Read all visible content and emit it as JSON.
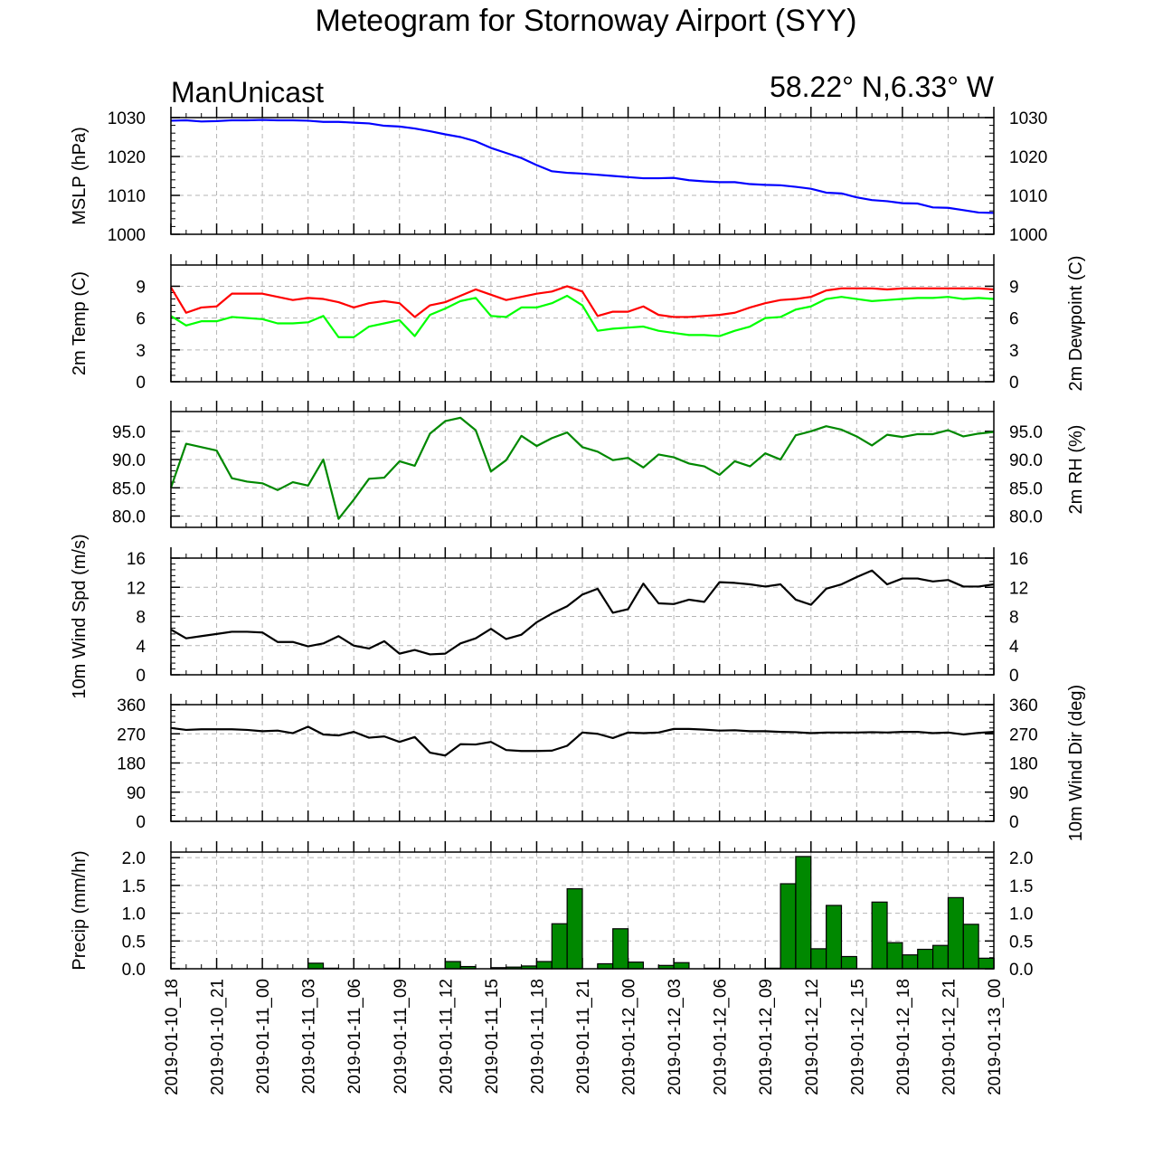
{
  "title": "Meteogram for Stornoway Airport (SYY)",
  "model_label": "ManUnicast",
  "location_label": "58.22° N,6.33° W",
  "time_labels": [
    "2019-01-10_18",
    "2019-01-10_21",
    "2019-01-11_00",
    "2019-01-11_03",
    "2019-01-11_06",
    "2019-01-11_09",
    "2019-01-11_12",
    "2019-01-11_15",
    "2019-01-11_18",
    "2019-01-11_21",
    "2019-01-12_00",
    "2019-01-12_03",
    "2019-01-12_06",
    "2019-01-12_09",
    "2019-01-12_12",
    "2019-01-12_15",
    "2019-01-12_18",
    "2019-01-12_21",
    "2019-01-13_00"
  ],
  "colors": {
    "mslp": "#0000ff",
    "temperature": "#ff0000",
    "dewpoint": "#00ff00",
    "rh": "#008800",
    "wind": "#000000",
    "precip_fill": "#008800",
    "grid": "#b4b4b4"
  },
  "chart_data": [
    {
      "type": "line",
      "ylabel": "MSLP (hPa)",
      "ylabel_right": "",
      "ylim": [
        1000,
        1030
      ],
      "yticks": [
        "1000",
        "1010",
        "1020",
        "1030"
      ],
      "x": [
        0,
        1,
        2,
        3,
        4,
        5,
        6,
        7,
        8,
        9,
        10,
        11,
        12,
        13,
        14,
        15,
        16,
        17,
        18,
        19,
        20,
        21,
        22,
        23,
        24,
        25,
        26,
        27,
        28,
        29,
        30,
        31,
        32,
        33,
        34,
        35,
        36,
        37,
        38,
        39,
        40,
        41,
        42,
        43,
        44,
        45,
        46,
        47,
        48,
        49,
        50,
        51,
        52,
        53,
        54
      ],
      "series": [
        {
          "values": [
            1029.2,
            1029.3,
            1029.0,
            1029.1,
            1029.3,
            1029.3,
            1029.4,
            1029.3,
            1029.3,
            1029.2,
            1028.9,
            1028.9,
            1028.7,
            1028.5,
            1027.9,
            1027.7,
            1027.2,
            1026.5,
            1025.7,
            1025.0,
            1023.9,
            1022.2,
            1020.9,
            1019.6,
            1017.8,
            1016.2,
            1015.8,
            1015.6,
            1015.3,
            1015.0,
            1014.7,
            1014.4,
            1014.4,
            1014.5,
            1013.9,
            1013.6,
            1013.4,
            1013.4,
            1012.9,
            1012.7,
            1012.6,
            1012.2,
            1011.7,
            1010.7,
            1010.5,
            1009.5,
            1008.8,
            1008.5,
            1008.0,
            1007.9,
            1006.9,
            1006.8,
            1006.2,
            1005.6,
            1005.5
          ]
        }
      ]
    },
    {
      "type": "line",
      "ylabel": "2m Temp (C)",
      "ylabel_right": "2m Dewpoint (C)",
      "ylim": [
        0,
        11
      ],
      "yticks": [
        "0",
        "3",
        "6",
        "9"
      ],
      "x": [
        0,
        1,
        2,
        3,
        4,
        5,
        6,
        7,
        8,
        9,
        10,
        11,
        12,
        13,
        14,
        15,
        16,
        17,
        18,
        19,
        20,
        21,
        22,
        23,
        24,
        25,
        26,
        27,
        28,
        29,
        30,
        31,
        32,
        33,
        34,
        35,
        36,
        37,
        38,
        39,
        40,
        41,
        42,
        43,
        44,
        45,
        46,
        47,
        48,
        49,
        50,
        51,
        52,
        53,
        54
      ],
      "series": [
        {
          "name": "2m Temp",
          "values": [
            8.9,
            6.5,
            7.0,
            7.1,
            8.3,
            8.3,
            8.3,
            8.0,
            7.7,
            7.9,
            7.8,
            7.5,
            7.0,
            7.4,
            7.6,
            7.4,
            6.1,
            7.2,
            7.5,
            8.1,
            8.7,
            8.2,
            7.7,
            8.0,
            8.3,
            8.5,
            9.0,
            8.5,
            6.2,
            6.6,
            6.6,
            7.1,
            6.3,
            6.1,
            6.1,
            6.2,
            6.3,
            6.5,
            7.0,
            7.4,
            7.7,
            7.8,
            8.0,
            8.6,
            8.8,
            8.8,
            8.8,
            8.7,
            8.8,
            8.8,
            8.8,
            8.8,
            8.8,
            8.8,
            8.7
          ]
        },
        {
          "name": "2m Dewpoint",
          "values": [
            6.2,
            5.3,
            5.7,
            5.7,
            6.1,
            6.0,
            5.9,
            5.5,
            5.5,
            5.6,
            6.2,
            4.2,
            4.2,
            5.2,
            5.5,
            5.8,
            4.3,
            6.3,
            6.9,
            7.6,
            7.9,
            6.2,
            6.1,
            7.0,
            7.0,
            7.4,
            8.1,
            7.2,
            4.8,
            5.0,
            5.1,
            5.2,
            4.8,
            4.6,
            4.4,
            4.4,
            4.3,
            4.8,
            5.2,
            6.0,
            6.1,
            6.8,
            7.1,
            7.8,
            8.0,
            7.8,
            7.6,
            7.7,
            7.8,
            7.9,
            7.9,
            8.0,
            7.8,
            7.9,
            7.8
          ]
        }
      ]
    },
    {
      "type": "line",
      "ylabel": "",
      "ylabel_right": "2m RH (%)",
      "ylim": [
        78,
        98.5
      ],
      "yticks": [
        "80.0",
        "85.0",
        "90.0",
        "95.0"
      ],
      "x": [
        0,
        1,
        2,
        3,
        4,
        5,
        6,
        7,
        8,
        9,
        10,
        11,
        12,
        13,
        14,
        15,
        16,
        17,
        18,
        19,
        20,
        21,
        22,
        23,
        24,
        25,
        26,
        27,
        28,
        29,
        30,
        31,
        32,
        33,
        34,
        35,
        36,
        37,
        38,
        39,
        40,
        41,
        42,
        43,
        44,
        45,
        46,
        47,
        48,
        49,
        50,
        51,
        52,
        53,
        54
      ],
      "series": [
        {
          "name": "2m RH",
          "values": [
            85.0,
            92.8,
            92.2,
            91.6,
            86.7,
            86.1,
            85.8,
            84.6,
            86.0,
            85.4,
            90.0,
            79.5,
            82.9,
            86.6,
            86.8,
            89.7,
            88.9,
            94.6,
            96.8,
            97.4,
            95.2,
            87.9,
            89.9,
            94.2,
            92.4,
            93.8,
            94.8,
            92.2,
            91.4,
            89.9,
            90.3,
            88.6,
            90.9,
            90.4,
            89.3,
            88.8,
            87.3,
            89.7,
            88.8,
            91.1,
            90.0,
            94.3,
            95.0,
            95.9,
            95.3,
            94.1,
            92.5,
            94.4,
            94.0,
            94.5,
            94.5,
            95.2,
            94.1,
            94.6,
            94.9
          ]
        }
      ]
    },
    {
      "type": "line",
      "ylabel": "10m Wind Spd (m/s)",
      "ylabel_right": "",
      "ylim": [
        0,
        16
      ],
      "yticks": [
        "0",
        "4",
        "8",
        "12",
        "16"
      ],
      "x": [
        0,
        1,
        2,
        3,
        4,
        5,
        6,
        7,
        8,
        9,
        10,
        11,
        12,
        13,
        14,
        15,
        16,
        17,
        18,
        19,
        20,
        21,
        22,
        23,
        24,
        25,
        26,
        27,
        28,
        29,
        30,
        31,
        32,
        33,
        34,
        35,
        36,
        37,
        38,
        39,
        40,
        41,
        42,
        43,
        44,
        45,
        46,
        47,
        48,
        49,
        50,
        51,
        52,
        53,
        54
      ],
      "series": [
        {
          "name": "10m Wind Spd",
          "values": [
            6.2,
            5.0,
            5.3,
            5.6,
            5.9,
            5.9,
            5.8,
            4.5,
            4.5,
            3.9,
            4.3,
            5.3,
            4.0,
            3.6,
            4.6,
            2.9,
            3.4,
            2.8,
            2.9,
            4.3,
            5.0,
            6.3,
            4.9,
            5.5,
            7.2,
            8.4,
            9.4,
            11.0,
            11.8,
            8.5,
            9.0,
            12.5,
            9.8,
            9.7,
            10.3,
            10.0,
            12.7,
            12.6,
            12.4,
            12.1,
            12.4,
            10.3,
            9.6,
            11.8,
            12.4,
            13.4,
            14.3,
            12.4,
            13.2,
            13.2,
            12.8,
            13.0,
            12.1,
            12.1,
            12.4
          ]
        }
      ]
    },
    {
      "type": "line",
      "ylabel": "",
      "ylabel_right": "10m Wind Dir (deg)",
      "ylim": [
        0,
        360
      ],
      "yticks": [
        "0",
        "90",
        "180",
        "270",
        "360"
      ],
      "x": [
        0,
        1,
        2,
        3,
        4,
        5,
        6,
        7,
        8,
        9,
        10,
        11,
        12,
        13,
        14,
        15,
        16,
        17,
        18,
        19,
        20,
        21,
        22,
        23,
        24,
        25,
        26,
        27,
        28,
        29,
        30,
        31,
        32,
        33,
        34,
        35,
        36,
        37,
        38,
        39,
        40,
        41,
        42,
        43,
        44,
        45,
        46,
        47,
        48,
        49,
        50,
        51,
        52,
        53,
        54
      ],
      "series": [
        {
          "name": "10m Wind Dir",
          "values": [
            288,
            282,
            284,
            284,
            284,
            282,
            278,
            280,
            272,
            292,
            268,
            265,
            276,
            258,
            262,
            245,
            260,
            212,
            203,
            238,
            237,
            245,
            220,
            217,
            217,
            218,
            233,
            274,
            270,
            257,
            274,
            272,
            274,
            285,
            285,
            283,
            280,
            281,
            278,
            278,
            276,
            275,
            272,
            274,
            274,
            274,
            275,
            274,
            276,
            276,
            272,
            274,
            268,
            273,
            276
          ]
        }
      ]
    },
    {
      "type": "bar",
      "ylabel": "Precip (mm/hr)",
      "ylabel_right": "",
      "ylim": [
        0,
        2.1
      ],
      "yticks": [
        "0.0",
        "0.5",
        "1.0",
        "1.5",
        "2.0"
      ],
      "x": [
        0,
        1,
        2,
        3,
        4,
        5,
        6,
        7,
        8,
        9,
        10,
        11,
        12,
        13,
        14,
        15,
        16,
        17,
        18,
        19,
        20,
        21,
        22,
        23,
        24,
        25,
        26,
        27,
        28,
        29,
        30,
        31,
        32,
        33,
        34,
        35,
        36,
        37,
        38,
        39,
        40,
        41,
        42,
        43,
        44,
        45,
        46,
        47,
        48,
        49,
        50,
        51,
        52,
        53
      ],
      "series": [
        {
          "name": "Precip",
          "values": [
            0,
            0,
            0,
            0,
            0,
            0,
            0,
            0,
            0,
            0.1,
            0.01,
            0,
            0,
            0,
            0.01,
            0,
            0,
            0,
            0.13,
            0.04,
            0,
            0.02,
            0.03,
            0.05,
            0.13,
            0.81,
            1.44,
            0,
            0.09,
            0.72,
            0.12,
            0,
            0.06,
            0.11,
            0,
            0.01,
            0,
            0,
            0,
            0.01,
            1.53,
            2.02,
            0.36,
            1.14,
            0.22,
            0,
            1.2,
            0.47,
            0.25,
            0.35,
            0.42,
            1.28,
            0.8,
            0.19
          ]
        }
      ]
    }
  ]
}
